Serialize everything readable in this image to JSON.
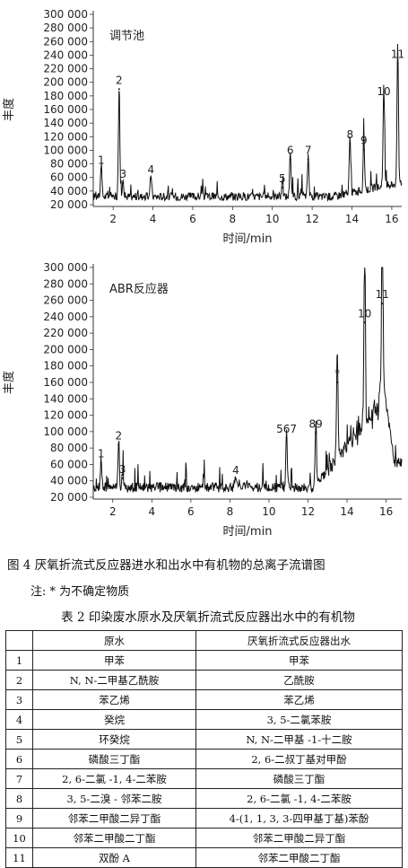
{
  "chart_data": [
    {
      "type": "line",
      "title": "调节池",
      "xlabel": "时间/min",
      "ylabel": "丰度",
      "xlim": [
        1,
        16.5
      ],
      "ylim": [
        20000,
        300000
      ],
      "x_ticks": [
        "2",
        "4",
        "6",
        "8",
        "10",
        "12",
        "14",
        "16"
      ],
      "y_ticks": [
        "20 000",
        "40 000",
        "60 000",
        "80 000",
        "100 000",
        "120 000",
        "140 000",
        "160 000",
        "180 000",
        "200 000",
        "220 000",
        "240 000",
        "260 000",
        "280 000",
        "300 000"
      ],
      "peaks": [
        {
          "label": "1",
          "x": 1.4,
          "y": 72000
        },
        {
          "label": "2",
          "x": 2.3,
          "y": 190000
        },
        {
          "label": "3",
          "x": 2.5,
          "y": 52000
        },
        {
          "label": "4",
          "x": 3.9,
          "y": 58000
        },
        {
          "label": "5",
          "x": 10.5,
          "y": 45000
        },
        {
          "label": "6",
          "x": 10.9,
          "y": 87000
        },
        {
          "label": "7",
          "x": 11.8,
          "y": 87000
        },
        {
          "label": "8",
          "x": 13.9,
          "y": 110000
        },
        {
          "label": "9",
          "x": 14.6,
          "y": 101000
        },
        {
          "label": "10",
          "x": 15.6,
          "y": 173000
        },
        {
          "label": "11",
          "x": 16.3,
          "y": 228000
        }
      ]
    },
    {
      "type": "line",
      "title": "ABR反应器",
      "xlabel": "时间/min",
      "ylabel": "丰度",
      "xlim": [
        1,
        16.8
      ],
      "ylim": [
        20000,
        300000
      ],
      "x_ticks": [
        "2",
        "4",
        "6",
        "8",
        "10",
        "12",
        "14",
        "16"
      ],
      "y_ticks": [
        "20 000",
        "40 000",
        "60 000",
        "80 000",
        "100 000",
        "120 000",
        "140 000",
        "160 000",
        "180 000",
        "200 000",
        "220 000",
        "240 000",
        "260 000",
        "280 000",
        "300 000"
      ],
      "peaks": [
        {
          "label": "1",
          "x": 1.4,
          "y": 62000
        },
        {
          "label": "2",
          "x": 2.3,
          "y": 84000
        },
        {
          "label": "3",
          "x": 2.5,
          "y": 43000
        },
        {
          "label": "4",
          "x": 8.3,
          "y": 42000
        },
        {
          "label": "567",
          "x": 10.9,
          "y": 92000
        },
        {
          "label": "89",
          "x": 12.4,
          "y": 98000
        },
        {
          "label": "*",
          "x": 13.5,
          "y": 160000
        },
        {
          "label": "10",
          "x": 14.9,
          "y": 233000
        },
        {
          "label": "11",
          "x": 15.8,
          "y": 256000
        }
      ]
    }
  ],
  "figure": {
    "caption": "图 4   厌氧折流式反应器进水和出水中有机物的总离子流谱图",
    "note": "注: *  为不确定物质"
  },
  "table": {
    "title": "表  2   印染废水原水及厌氧折流式反应器出水中的有机物",
    "headers": [
      "",
      "原水",
      "厌氧折流式反应器出水"
    ],
    "rows": [
      [
        "1",
        "甲苯",
        "甲苯"
      ],
      [
        "2",
        "N, N-二甲基乙酰胺",
        "乙酰胺"
      ],
      [
        "3",
        "苯乙烯",
        "苯乙烯"
      ],
      [
        "4",
        "癸烷",
        "3, 5-二氯苯胺"
      ],
      [
        "5",
        "环癸烷",
        "N, N-二甲基 -1-十二胺"
      ],
      [
        "6",
        "磷酸三丁酯",
        "2, 6-二叔丁基对甲酚"
      ],
      [
        "7",
        "2, 6-二氯 -1, 4-二苯胺",
        "磷酸三丁酯"
      ],
      [
        "8",
        "3, 5-二溴 - 邻苯二胺",
        "2, 6-二氯 -1, 4-二苯胺"
      ],
      [
        "9",
        "邻苯二甲酸二异丁酯",
        "4-(1, 1, 3, 3-四甲基丁基)苯酚"
      ],
      [
        "10",
        "邻苯二甲酸二丁酯",
        "邻苯二甲酸二异丁酯"
      ],
      [
        "11",
        "双酚 A",
        "邻苯二甲酸二丁酯"
      ]
    ]
  }
}
